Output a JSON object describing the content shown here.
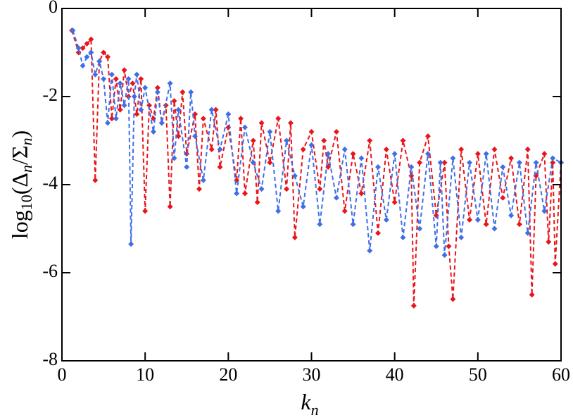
{
  "chart_data": {
    "type": "line",
    "xlabel": [
      "k",
      "n"
    ],
    "ylabel": [
      "log",
      "10",
      "(Δ",
      "n",
      "/Σ",
      "n",
      ")"
    ],
    "xlim": [
      0,
      60
    ],
    "xticks": [
      0,
      10,
      20,
      30,
      40,
      50,
      60
    ],
    "ylim": [
      -8,
      0
    ],
    "yticks": [
      -8,
      -6,
      -4,
      -2,
      0
    ],
    "grid": false,
    "series": [
      {
        "color": "#e8161b",
        "dash": true,
        "marker": "diamond",
        "x": [
          1.2,
          2,
          2.5,
          3,
          3.5,
          4,
          4.5,
          5,
          5.5,
          6,
          6.5,
          7,
          7.5,
          8,
          8.5,
          9,
          9.5,
          10,
          10.5,
          11,
          11.5,
          12,
          12.5,
          13,
          13.5,
          14,
          14.5,
          15,
          16,
          16.5,
          17,
          18,
          18.5,
          19,
          20,
          21,
          21.5,
          22,
          23,
          23.5,
          24,
          25,
          26,
          27,
          27.5,
          28,
          29,
          30,
          31,
          31.5,
          32,
          33,
          34,
          35,
          36,
          37,
          38,
          39,
          40,
          41,
          42,
          42.3,
          43,
          44,
          45,
          46,
          46.5,
          47,
          48,
          49,
          50,
          51,
          52,
          53,
          54,
          55,
          56,
          56.5,
          57,
          58,
          58.5,
          59,
          59.3,
          60
        ],
        "values": [
          -0.5,
          -1,
          -0.9,
          -0.8,
          -0.7,
          -3.9,
          -1.2,
          -1.0,
          -1.1,
          -2.5,
          -1.6,
          -2.3,
          -1.4,
          -2,
          -1.7,
          -2.4,
          -1.6,
          -4.6,
          -2.2,
          -2.5,
          -1.8,
          -2.6,
          -2.2,
          -4.5,
          -2.1,
          -2.9,
          -1.9,
          -3.3,
          -2.4,
          -4.1,
          -2.5,
          -3.2,
          -2.3,
          -3.6,
          -2.7,
          -3.9,
          -2.5,
          -4.2,
          -3,
          -4.4,
          -2.6,
          -3.5,
          -2.5,
          -4.1,
          -2.6,
          -5.2,
          -3.2,
          -2.8,
          -4.1,
          -3,
          -3.6,
          -2.8,
          -4.6,
          -3.3,
          -4.2,
          -3,
          -5.1,
          -3.2,
          -4.4,
          -3,
          -3.8,
          -6.75,
          -3.5,
          -2.9,
          -4.7,
          -3.5,
          -5.4,
          -6.6,
          -3.2,
          -4.8,
          -3.3,
          -4.9,
          -3.2,
          -4.3,
          -3.4,
          -4.9,
          -3.2,
          -6.5,
          -3.8,
          -3.3,
          -5.3,
          -3.5,
          -5.8,
          -3.5
        ]
      },
      {
        "color": "#3f6fe8",
        "dash": true,
        "marker": "diamond",
        "x": [
          1.3,
          2,
          2.5,
          3,
          3.5,
          4,
          4.5,
          5,
          5.5,
          6,
          6.5,
          7,
          7.5,
          8,
          8.3,
          8.7,
          9,
          9.5,
          10,
          11,
          11.5,
          12,
          13,
          13.5,
          14,
          15,
          15.5,
          16,
          17,
          18,
          19,
          20,
          21,
          22,
          23,
          24,
          25,
          26,
          27,
          28,
          29,
          30,
          31,
          32,
          33,
          34,
          35,
          36,
          37,
          38,
          39,
          40,
          41,
          42,
          43,
          44,
          45,
          45.5,
          46,
          47,
          48,
          49,
          50,
          51,
          52,
          53,
          54,
          55,
          56,
          57,
          58,
          59,
          60
        ],
        "values": [
          -0.5,
          -0.9,
          -1.3,
          -1.1,
          -1.0,
          -1.5,
          -1.2,
          -1.6,
          -2.6,
          -1.5,
          -2.5,
          -1.7,
          -2.2,
          -1.6,
          -5.35,
          -2.0,
          -1.5,
          -2.3,
          -1.8,
          -2.8,
          -1.9,
          -2.6,
          -1.7,
          -3.4,
          -2.3,
          -3.6,
          -1.9,
          -2.9,
          -3.9,
          -2.3,
          -3.2,
          -2.4,
          -4.2,
          -2.7,
          -3.5,
          -4.1,
          -2.8,
          -4.6,
          -3,
          -3.8,
          -4.5,
          -3.1,
          -4.9,
          -3.3,
          -4.3,
          -3.2,
          -4.9,
          -3.4,
          -5.5,
          -3.6,
          -4.8,
          -3.3,
          -5.2,
          -3.6,
          -5,
          -3.3,
          -5.4,
          -3.5,
          -5.6,
          -3.4,
          -5.2,
          -3.5,
          -4.8,
          -3.3,
          -5.0,
          -3.6,
          -4.7,
          -3.5,
          -5.1,
          -3.5,
          -4.6,
          -3.4,
          -3.5
        ]
      }
    ]
  }
}
